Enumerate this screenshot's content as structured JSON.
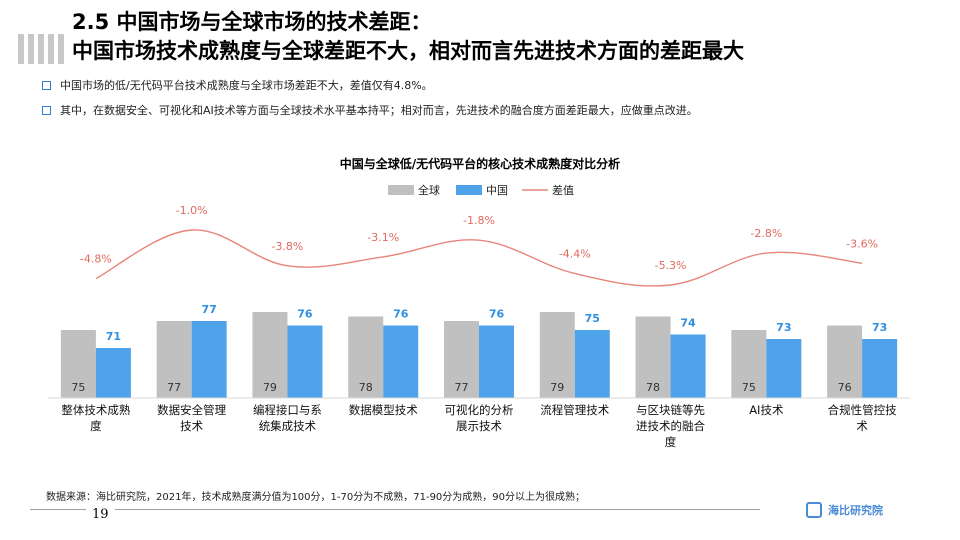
{
  "header": {
    "title_line1": "2.5 中国市场与全球市场的技术差距：",
    "title_line2": "中国市场技术成熟度与全球差距不大，相对而言先进技术方面的差距最大"
  },
  "bullets": [
    "中国市场的低/无代码平台技术成熟度与全球市场差距不大，差值仅有4.8%。",
    "其中，在数据安全、可视化和AI技术等方面与全球技术水平基本持平；相对而言，先进技术的融合度方面差距最大，应做重点改进。"
  ],
  "chart_data": {
    "type": "bar",
    "title": "中国与全球低/无代码平台的核心技术成熟度对比分析",
    "categories": [
      [
        "整体技术成熟",
        "度"
      ],
      [
        "数据安全管理",
        "技术"
      ],
      [
        "编程接口与系",
        "统集成技术"
      ],
      [
        "数据模型技术"
      ],
      [
        "可视化的分析",
        "展示技术"
      ],
      [
        "流程管理技术"
      ],
      [
        "与区块链等先",
        "进技术的融合",
        "度"
      ],
      [
        "AI技术"
      ],
      [
        "合规性管控技",
        "术"
      ]
    ],
    "series": [
      {
        "name": "全球",
        "values": [
          75,
          77,
          79,
          78,
          77,
          79,
          78,
          75,
          76
        ],
        "color": "#c0c0c0"
      },
      {
        "name": "中国",
        "values": [
          71,
          77,
          76,
          76,
          76,
          75,
          74,
          73,
          73
        ],
        "color": "#4ea3ea"
      }
    ],
    "diff": {
      "name": "差值",
      "values": [
        -4.8,
        -1.0,
        -3.8,
        -3.1,
        -1.8,
        -4.4,
        -5.3,
        -2.8,
        -3.6
      ],
      "labels": [
        "-4.8%",
        "-1.0%",
        "-3.8%",
        "-3.1%",
        "-1.8%",
        "-4.4%",
        "-5.3%",
        "-2.8%",
        "-3.6%"
      ],
      "color": "#e8857a"
    },
    "legend": [
      "全球",
      "中国",
      "差值"
    ],
    "legend_position": "top-center"
  },
  "footer": {
    "source": "数据来源：海比研究院，2021年，技术成熟度满分值为100分，1-70分为不成熟，71-90分为成熟，90分以上为很成熟；",
    "page_number": "19",
    "logo_text": "海比研究院"
  }
}
